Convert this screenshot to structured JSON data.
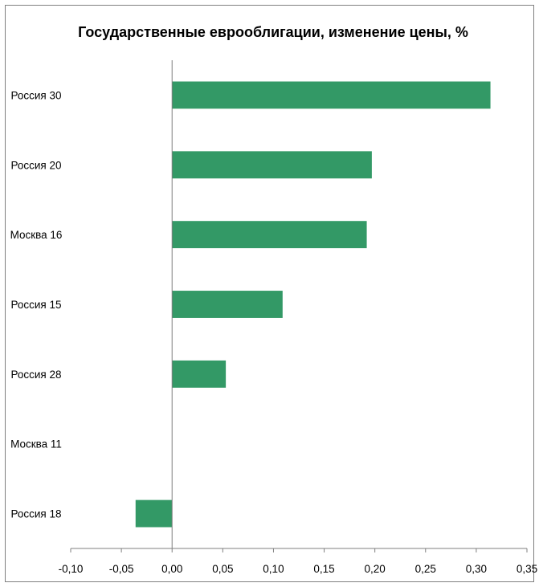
{
  "chart_data": {
    "type": "bar",
    "orientation": "horizontal",
    "title": "Государственные еврооблигации, изменение цены, %",
    "xlabel": "",
    "ylabel": "",
    "categories": [
      "Россия 30",
      "Россия 20",
      "Москва 16",
      "Россия 15",
      "Россия 28",
      "Москва 11",
      "Россия 18"
    ],
    "values": [
      0.314,
      0.197,
      0.192,
      0.109,
      0.053,
      0.0,
      -0.036
    ],
    "xlim": [
      -0.1,
      0.35
    ],
    "xticks": [
      -0.1,
      -0.05,
      0.0,
      0.05,
      0.1,
      0.15,
      0.2,
      0.25,
      0.3,
      0.35
    ],
    "xtick_labels": [
      "-0,10",
      "-0,05",
      "0,00",
      "0,05",
      "0,10",
      "0,15",
      "0,20",
      "0,25",
      "0,30",
      "0,35"
    ],
    "grid": false,
    "legend": "none",
    "bar_color": "#339966",
    "border_color": "#7f7f7f",
    "axis_color": "#7f7f7f"
  }
}
